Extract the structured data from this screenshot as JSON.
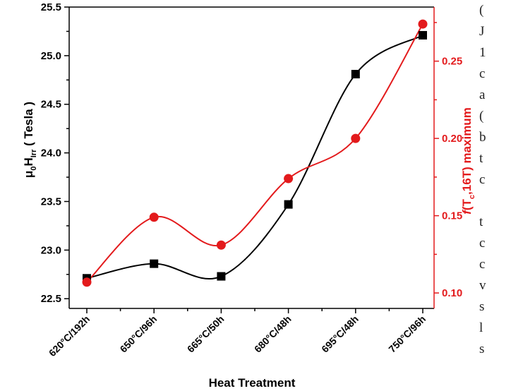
{
  "chart_data": {
    "type": "scatter",
    "categories": [
      "620°C/192h",
      "650°C/96h",
      "665°C/50h",
      "680°C/48h",
      "695°C/48h",
      "750°C/96h"
    ],
    "xlabel": "Heat Treatment",
    "ylabel_left": "μ0HIrr ( Tesla )",
    "ylabel_left_parts": {
      "main": "μ",
      "sub0": "0",
      "mid": "H",
      "sub1": "Irr",
      "end": " ( Tesla )"
    },
    "ylabel_right": "f(Tc,16T) maximum",
    "ylabel_right_parts": {
      "f": "f",
      "open": "(T",
      "sub": "c",
      "rest": ",16T) maximum"
    },
    "ylim_left": [
      22.4,
      25.5
    ],
    "ylim_right": [
      0.09,
      0.285
    ],
    "yticks_left": [
      "22.5",
      "23.0",
      "23.5",
      "24.0",
      "24.5",
      "25.0",
      "25.5"
    ],
    "yticks_right": [
      "0.10",
      "0.15",
      "0.20",
      "0.25"
    ],
    "grid": false,
    "series": [
      {
        "axis": "left",
        "marker": "square",
        "color": "#000000",
        "values": [
          22.71,
          22.86,
          22.73,
          23.47,
          24.81,
          25.21
        ]
      },
      {
        "axis": "right",
        "marker": "circle",
        "color": "#e31a1c",
        "values": [
          0.107,
          0.149,
          0.131,
          0.174,
          0.2,
          0.274
        ]
      }
    ]
  },
  "side_text": [
    "(",
    "J",
    "1",
    "c",
    "a",
    "(",
    "b",
    "t",
    "c",
    "",
    "t",
    "c",
    "c",
    "v",
    "s",
    "l",
    "s"
  ]
}
